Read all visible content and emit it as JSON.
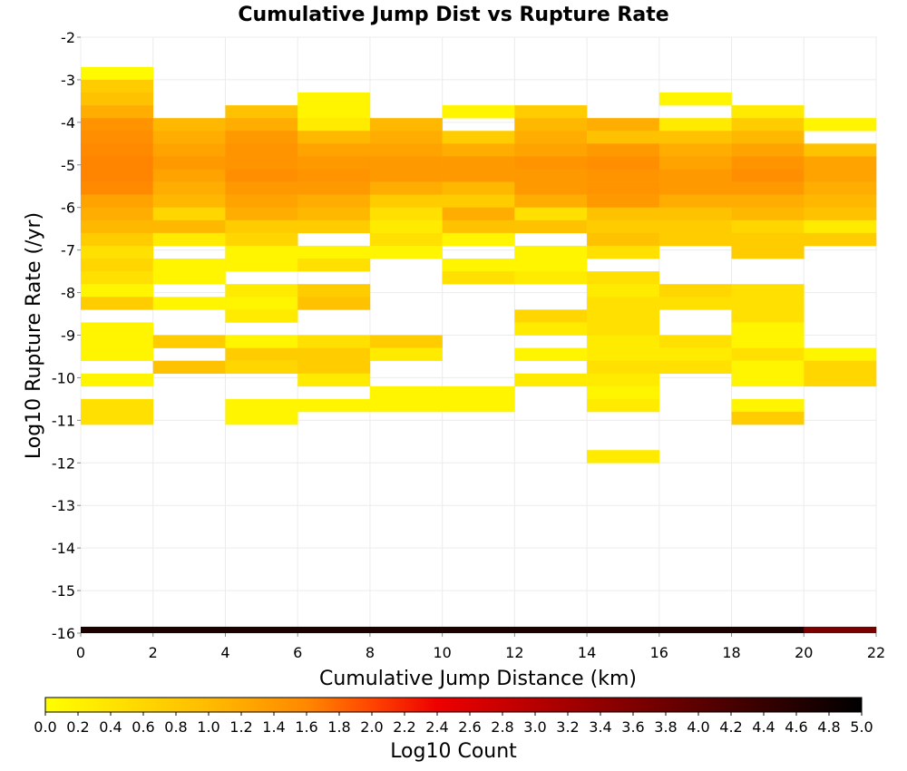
{
  "chart_data": {
    "type": "heatmap",
    "title": "Cumulative Jump Dist vs Rupture Rate",
    "xlabel": "Cumulative Jump Distance (km)",
    "ylabel": "Log10 Rupture Rate (/yr)",
    "xlim": [
      0,
      22
    ],
    "ylim": [
      -16,
      -2
    ],
    "x_bin_width": 2,
    "y_bin_height": 0.3,
    "x_ticks": [
      0,
      2,
      4,
      6,
      8,
      10,
      12,
      14,
      16,
      18,
      20,
      22
    ],
    "y_ticks": [
      -2,
      -3,
      -4,
      -5,
      -6,
      -7,
      -8,
      -9,
      -10,
      -11,
      -12,
      -13,
      -14,
      -15,
      -16
    ],
    "grid": true,
    "colorbar": {
      "label": "Log10 Count",
      "range": [
        0.0,
        5.0
      ],
      "ticks": [
        "0.0",
        "0.2",
        "0.4",
        "0.6",
        "0.8",
        "1.0",
        "1.2",
        "1.4",
        "1.6",
        "1.8",
        "2.0",
        "2.2",
        "2.4",
        "2.6",
        "2.8",
        "3.0",
        "3.2",
        "3.4",
        "3.6",
        "3.8",
        "4.0",
        "4.2",
        "4.4",
        "4.6",
        "4.8",
        "5.0"
      ],
      "colors": [
        "#ffff00",
        "#ff9900",
        "#ff6600",
        "#ee0000",
        "#880000",
        "#000000"
      ]
    },
    "columns": [
      {
        "x0": 0,
        "cells": [
          [
            -2.85,
            0.05
          ],
          [
            -3.15,
            0.5
          ],
          [
            -3.45,
            0.6
          ],
          [
            -3.75,
            0.8
          ],
          [
            -4.05,
            1.1
          ],
          [
            -4.35,
            1.2
          ],
          [
            -4.65,
            1.3
          ],
          [
            -4.95,
            1.4
          ],
          [
            -5.25,
            1.4
          ],
          [
            -5.55,
            1.3
          ],
          [
            -5.85,
            0.9
          ],
          [
            -6.15,
            0.8
          ],
          [
            -6.45,
            0.7
          ],
          [
            -6.75,
            0.5
          ],
          [
            -7.05,
            0.3
          ],
          [
            -7.35,
            0.4
          ],
          [
            -7.65,
            0.3
          ],
          [
            -7.95,
            0.1
          ],
          [
            -8.25,
            0.5
          ],
          [
            -8.85,
            0.1
          ],
          [
            -9.15,
            0.1
          ],
          [
            -9.45,
            0.1
          ],
          [
            -10.05,
            0.1
          ],
          [
            -10.65,
            0.3
          ],
          [
            -10.95,
            0.3
          ]
        ]
      },
      {
        "x0": 2,
        "cells": [
          [
            -4.05,
            0.7
          ],
          [
            -4.35,
            0.8
          ],
          [
            -4.65,
            0.9
          ],
          [
            -4.95,
            1.0
          ],
          [
            -5.25,
            0.9
          ],
          [
            -5.55,
            0.8
          ],
          [
            -5.85,
            0.7
          ],
          [
            -6.15,
            0.4
          ],
          [
            -6.45,
            0.7
          ],
          [
            -6.75,
            0.2
          ],
          [
            -7.35,
            0.1
          ],
          [
            -7.65,
            0.1
          ],
          [
            -8.25,
            0.1
          ],
          [
            -9.15,
            0.5
          ],
          [
            -9.75,
            0.6
          ]
        ]
      },
      {
        "x0": 4,
        "cells": [
          [
            -3.75,
            0.6
          ],
          [
            -4.05,
            0.8
          ],
          [
            -4.35,
            1.0
          ],
          [
            -4.65,
            1.1
          ],
          [
            -4.95,
            1.1
          ],
          [
            -5.25,
            1.2
          ],
          [
            -5.55,
            1.0
          ],
          [
            -5.85,
            0.9
          ],
          [
            -6.15,
            0.8
          ],
          [
            -6.45,
            0.5
          ],
          [
            -6.75,
            0.4
          ],
          [
            -7.05,
            0.1
          ],
          [
            -7.35,
            0.1
          ],
          [
            -7.95,
            0.2
          ],
          [
            -8.25,
            0.1
          ],
          [
            -8.55,
            0.2
          ],
          [
            -9.15,
            0.1
          ],
          [
            -9.45,
            0.5
          ],
          [
            -9.75,
            0.4
          ],
          [
            -10.65,
            0.1
          ],
          [
            -10.95,
            0.1
          ]
        ]
      },
      {
        "x0": 6,
        "cells": [
          [
            -3.45,
            0.1
          ],
          [
            -3.75,
            0.1
          ],
          [
            -4.05,
            0.2
          ],
          [
            -4.35,
            0.7
          ],
          [
            -4.65,
            0.9
          ],
          [
            -4.95,
            1.0
          ],
          [
            -5.25,
            1.1
          ],
          [
            -5.55,
            1.0
          ],
          [
            -5.85,
            0.8
          ],
          [
            -6.15,
            0.7
          ],
          [
            -6.45,
            0.5
          ],
          [
            -7.05,
            0.1
          ],
          [
            -7.35,
            0.3
          ],
          [
            -7.95,
            0.5
          ],
          [
            -8.25,
            0.6
          ],
          [
            -9.15,
            0.3
          ],
          [
            -9.45,
            0.5
          ],
          [
            -9.75,
            0.5
          ],
          [
            -10.05,
            0.2
          ],
          [
            -10.65,
            0.1
          ]
        ]
      },
      {
        "x0": 8,
        "cells": [
          [
            -4.05,
            0.7
          ],
          [
            -4.35,
            0.8
          ],
          [
            -4.65,
            0.9
          ],
          [
            -4.95,
            1.0
          ],
          [
            -5.25,
            1.0
          ],
          [
            -5.55,
            0.8
          ],
          [
            -5.85,
            0.5
          ],
          [
            -6.15,
            0.3
          ],
          [
            -6.45,
            0.2
          ],
          [
            -6.75,
            0.3
          ],
          [
            -7.05,
            0.1
          ],
          [
            -9.15,
            0.5
          ],
          [
            -9.45,
            0.2
          ],
          [
            -10.35,
            0.1
          ],
          [
            -10.65,
            0.1
          ]
        ]
      },
      {
        "x0": 10,
        "cells": [
          [
            -3.75,
            0.1
          ],
          [
            -4.35,
            0.5
          ],
          [
            -4.65,
            0.8
          ],
          [
            -4.95,
            1.0
          ],
          [
            -5.25,
            1.0
          ],
          [
            -5.55,
            0.7
          ],
          [
            -5.85,
            0.5
          ],
          [
            -6.15,
            0.8
          ],
          [
            -6.45,
            0.6
          ],
          [
            -6.75,
            0.1
          ],
          [
            -7.35,
            0.1
          ],
          [
            -7.65,
            0.3
          ],
          [
            -10.35,
            0.1
          ],
          [
            -10.65,
            0.1
          ]
        ]
      },
      {
        "x0": 12,
        "cells": [
          [
            -3.75,
            0.5
          ],
          [
            -4.05,
            0.7
          ],
          [
            -4.35,
            0.8
          ],
          [
            -4.65,
            0.9
          ],
          [
            -4.95,
            1.1
          ],
          [
            -5.25,
            1.0
          ],
          [
            -5.55,
            1.0
          ],
          [
            -5.85,
            0.8
          ],
          [
            -6.15,
            0.3
          ],
          [
            -6.45,
            0.6
          ],
          [
            -7.05,
            0.1
          ],
          [
            -7.35,
            0.1
          ],
          [
            -7.65,
            0.2
          ],
          [
            -8.55,
            0.4
          ],
          [
            -8.85,
            0.2
          ],
          [
            -9.45,
            0.1
          ],
          [
            -10.05,
            0.2
          ]
        ]
      },
      {
        "x0": 14,
        "cells": [
          [
            -4.05,
            0.8
          ],
          [
            -4.35,
            0.6
          ],
          [
            -4.65,
            1.0
          ],
          [
            -4.95,
            1.2
          ],
          [
            -5.25,
            1.1
          ],
          [
            -5.55,
            1.1
          ],
          [
            -5.85,
            1.0
          ],
          [
            -6.15,
            0.6
          ],
          [
            -6.45,
            0.5
          ],
          [
            -6.75,
            0.6
          ],
          [
            -7.05,
            0.3
          ],
          [
            -7.65,
            0.3
          ],
          [
            -7.95,
            0.2
          ],
          [
            -8.25,
            0.3
          ],
          [
            -8.55,
            0.3
          ],
          [
            -8.85,
            0.3
          ],
          [
            -9.15,
            0.2
          ],
          [
            -9.45,
            0.2
          ],
          [
            -9.75,
            0.3
          ],
          [
            -10.05,
            0.2
          ],
          [
            -10.35,
            0.1
          ],
          [
            -10.65,
            0.2
          ],
          [
            -11.85,
            0.2
          ]
        ]
      },
      {
        "x0": 16,
        "cells": [
          [
            -3.45,
            0.1
          ],
          [
            -4.05,
            0.2
          ],
          [
            -4.35,
            0.6
          ],
          [
            -4.65,
            0.8
          ],
          [
            -4.95,
            0.9
          ],
          [
            -5.25,
            1.0
          ],
          [
            -5.55,
            1.0
          ],
          [
            -5.85,
            0.8
          ],
          [
            -6.15,
            0.6
          ],
          [
            -6.45,
            0.5
          ],
          [
            -6.75,
            0.5
          ],
          [
            -7.95,
            0.4
          ],
          [
            -8.25,
            0.3
          ],
          [
            -9.15,
            0.3
          ],
          [
            -9.45,
            0.2
          ],
          [
            -9.75,
            0.3
          ]
        ]
      },
      {
        "x0": 18,
        "cells": [
          [
            -3.75,
            0.2
          ],
          [
            -4.05,
            0.5
          ],
          [
            -4.35,
            0.7
          ],
          [
            -4.65,
            0.9
          ],
          [
            -4.95,
            1.1
          ],
          [
            -5.25,
            1.2
          ],
          [
            -5.55,
            1.0
          ],
          [
            -5.85,
            0.8
          ],
          [
            -6.15,
            0.7
          ],
          [
            -6.45,
            0.4
          ],
          [
            -6.75,
            0.5
          ],
          [
            -7.05,
            0.5
          ],
          [
            -7.95,
            0.3
          ],
          [
            -8.25,
            0.3
          ],
          [
            -8.55,
            0.3
          ],
          [
            -8.85,
            0.1
          ],
          [
            -9.15,
            0.1
          ],
          [
            -9.45,
            0.3
          ],
          [
            -9.75,
            0.1
          ],
          [
            -10.05,
            0.1
          ],
          [
            -10.65,
            0.1
          ],
          [
            -10.95,
            0.5
          ]
        ]
      },
      {
        "x0": 20,
        "cells": [
          [
            -4.05,
            0.1
          ],
          [
            -4.65,
            0.6
          ],
          [
            -4.95,
            0.9
          ],
          [
            -5.25,
            0.9
          ],
          [
            -5.55,
            0.8
          ],
          [
            -5.85,
            0.7
          ],
          [
            -6.15,
            0.6
          ],
          [
            -6.45,
            0.2
          ],
          [
            -6.75,
            0.5
          ],
          [
            -9.45,
            0.1
          ],
          [
            -9.75,
            0.4
          ],
          [
            -10.05,
            0.4
          ]
        ]
      }
    ],
    "bottom_row": {
      "y": -15.9,
      "values": [
        4.8,
        4.8,
        4.8,
        4.8,
        4.8,
        4.8,
        4.8,
        4.8,
        4.8,
        4.8,
        4.1
      ]
    }
  }
}
